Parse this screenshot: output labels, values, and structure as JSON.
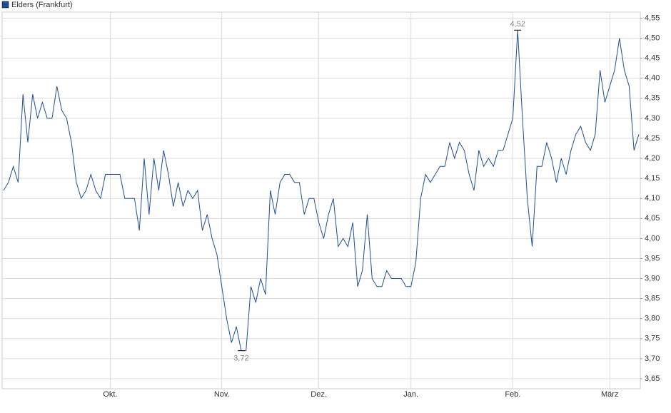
{
  "chart_data": {
    "type": "line",
    "categories": [
      null,
      null,
      null,
      null,
      null,
      null,
      null,
      null,
      null,
      null,
      null,
      null,
      null,
      null,
      null,
      null,
      null,
      null,
      null,
      null,
      null,
      null,
      "Okt.",
      null,
      null,
      null,
      null,
      null,
      null,
      null,
      null,
      null,
      null,
      null,
      null,
      null,
      null,
      null,
      null,
      null,
      null,
      null,
      null,
      null,
      null,
      "Nov.",
      null,
      null,
      null,
      null,
      null,
      null,
      null,
      null,
      null,
      null,
      null,
      null,
      null,
      null,
      null,
      null,
      null,
      null,
      null,
      "Dez.",
      null,
      null,
      null,
      null,
      null,
      null,
      null,
      null,
      null,
      null,
      null,
      null,
      null,
      null,
      null,
      null,
      null,
      null,
      "Jan.",
      null,
      null,
      null,
      null,
      null,
      null,
      null,
      null,
      null,
      null,
      null,
      null,
      null,
      null,
      null,
      null,
      null,
      null,
      null,
      null,
      "Feb.",
      null,
      null,
      null,
      null,
      null,
      null,
      null,
      null,
      null,
      null,
      null,
      null,
      null,
      null,
      null,
      null,
      null,
      null,
      null,
      "März",
      null,
      null,
      null,
      null,
      null,
      null
    ],
    "series": [
      {
        "name": "Elders (Frankfurt)",
        "color": "#1f4e96",
        "values": [
          4.12,
          4.14,
          4.18,
          4.14,
          4.36,
          4.24,
          4.36,
          4.3,
          4.34,
          4.3,
          4.3,
          4.38,
          4.32,
          4.3,
          4.24,
          4.14,
          4.1,
          4.12,
          4.16,
          4.12,
          4.1,
          4.16,
          4.16,
          4.16,
          4.16,
          4.1,
          4.1,
          4.1,
          4.02,
          4.2,
          4.06,
          4.2,
          4.12,
          4.22,
          4.16,
          4.08,
          4.14,
          4.08,
          4.12,
          4.1,
          4.12,
          4.02,
          4.06,
          4.0,
          3.96,
          3.88,
          3.8,
          3.74,
          3.78,
          3.72,
          3.72,
          3.88,
          3.84,
          3.9,
          3.86,
          4.12,
          4.06,
          4.14,
          4.16,
          4.16,
          4.14,
          4.14,
          4.06,
          4.1,
          4.1,
          4.04,
          4.0,
          4.06,
          4.1,
          3.98,
          4.0,
          3.98,
          4.04,
          3.88,
          3.92,
          4.06,
          3.9,
          3.88,
          3.88,
          3.92,
          3.9,
          3.9,
          3.9,
          3.88,
          3.88,
          3.94,
          4.1,
          4.16,
          4.14,
          4.16,
          4.18,
          4.18,
          4.24,
          4.2,
          4.24,
          4.22,
          4.16,
          4.12,
          4.22,
          4.18,
          4.2,
          4.18,
          4.22,
          4.22,
          4.26,
          4.3,
          4.52,
          4.3,
          4.1,
          3.98,
          4.18,
          4.18,
          4.24,
          4.2,
          4.14,
          4.2,
          4.16,
          4.22,
          4.26,
          4.28,
          4.24,
          4.22,
          4.26,
          4.42,
          4.34,
          4.38,
          4.42,
          4.5,
          4.42,
          4.38,
          4.22,
          4.26
        ]
      }
    ],
    "annotations": [
      {
        "label": "4,52",
        "value": 4.52
      },
      {
        "label": "3,72",
        "value": 3.72
      }
    ],
    "ylim": [
      3.625,
      4.565
    ],
    "yticks": [
      {
        "value": 3.65,
        "label": "3,65"
      },
      {
        "value": 3.7,
        "label": "3,70"
      },
      {
        "value": 3.75,
        "label": "3,75"
      },
      {
        "value": 3.8,
        "label": "3,80"
      },
      {
        "value": 3.85,
        "label": "3,85"
      },
      {
        "value": 3.9,
        "label": "3,90"
      },
      {
        "value": 3.95,
        "label": "3,95"
      },
      {
        "value": 4.0,
        "label": "4,00"
      },
      {
        "value": 4.05,
        "label": "4,05"
      },
      {
        "value": 4.1,
        "label": "4,10"
      },
      {
        "value": 4.15,
        "label": "4,15"
      },
      {
        "value": 4.2,
        "label": "4,20"
      },
      {
        "value": 4.25,
        "label": "4,25"
      },
      {
        "value": 4.3,
        "label": "4,30"
      },
      {
        "value": 4.35,
        "label": "4,35"
      },
      {
        "value": 4.4,
        "label": "4,40"
      },
      {
        "value": 4.45,
        "label": "4,45"
      },
      {
        "value": 4.5,
        "label": "4,50"
      },
      {
        "value": 4.55,
        "label": "4,55"
      }
    ],
    "grid": true
  }
}
